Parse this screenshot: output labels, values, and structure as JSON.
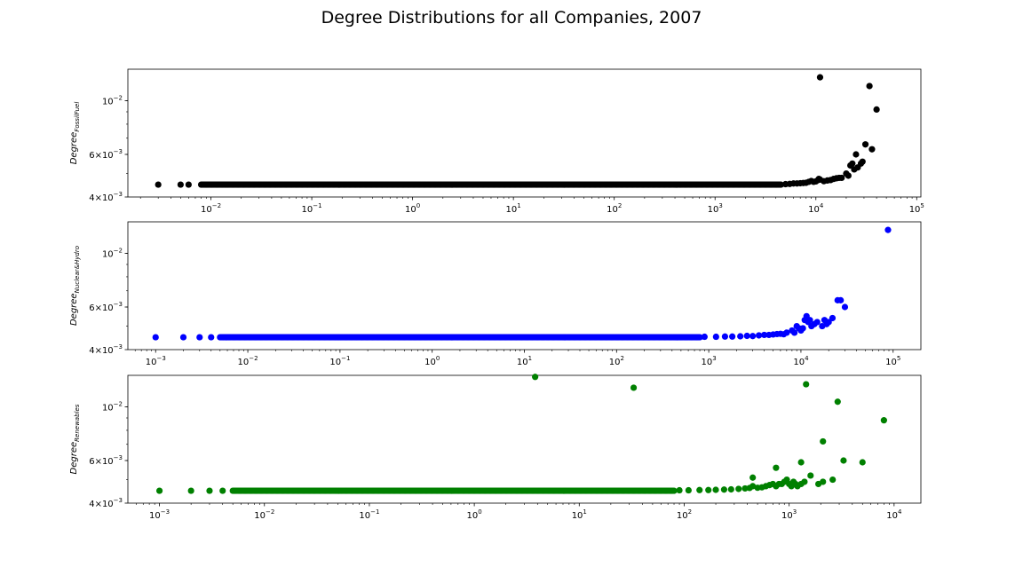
{
  "figure": {
    "title": "Degree Distributions for all Companies, 2007"
  },
  "chart_data": [
    {
      "type": "scatter",
      "name": "fossil",
      "ylabel_main": "Degree",
      "ylabel_sub": "FossilFuel",
      "color": "#000000",
      "xscale": "log",
      "yscale": "log",
      "xlim": [
        0.0015,
        110000
      ],
      "ylim": [
        0.004,
        0.0135
      ],
      "xticks": [
        {
          "base": "10",
          "exp": "−2",
          "v": 0.01
        },
        {
          "base": "10",
          "exp": "−1",
          "v": 0.1
        },
        {
          "base": "10",
          "exp": "0",
          "v": 1
        },
        {
          "base": "10",
          "exp": "1",
          "v": 10
        },
        {
          "base": "10",
          "exp": "2",
          "v": 100
        },
        {
          "base": "10",
          "exp": "3",
          "v": 1000
        },
        {
          "base": "10",
          "exp": "4",
          "v": 10000
        },
        {
          "base": "10",
          "exp": "5",
          "v": 100000
        }
      ],
      "yticks": [
        {
          "mant": "4",
          "base": "10",
          "exp": "−3",
          "v": 0.004
        },
        {
          "mant": "6",
          "base": "10",
          "exp": "−3",
          "v": 0.006
        },
        {
          "mant": "",
          "base": "10",
          "exp": "−2",
          "v": 0.01
        }
      ],
      "baseline_y": 0.0045,
      "baseline_x": [
        0.008,
        4500
      ],
      "sparse_x": [
        0.003,
        0.005,
        0.006
      ],
      "x": [
        5000,
        5500,
        6000,
        6500,
        7000,
        7500,
        8000,
        8500,
        9000,
        9500,
        10000,
        10500,
        11000,
        12000,
        13000,
        14000,
        15000,
        16000,
        17000,
        18000,
        20000,
        21000,
        22000,
        23000,
        24000,
        25000,
        26000,
        28000,
        29000,
        31000,
        36000,
        11000,
        34000,
        40000,
        10700
      ],
      "y": [
        0.00452,
        0.00453,
        0.00455,
        0.00455,
        0.00456,
        0.00457,
        0.00458,
        0.00462,
        0.00466,
        0.00462,
        0.00464,
        0.0047,
        0.00472,
        0.00465,
        0.00468,
        0.0047,
        0.00475,
        0.00478,
        0.0048,
        0.0048,
        0.005,
        0.0049,
        0.0054,
        0.0055,
        0.0052,
        0.006,
        0.0053,
        0.0055,
        0.0056,
        0.0066,
        0.0063,
        0.0125,
        0.0115,
        0.0092,
        0.00475
      ]
    },
    {
      "type": "scatter",
      "name": "nuclear",
      "ylabel_main": "Degree",
      "ylabel_sub": "Nuclear&Hydro",
      "color": "#0000ff",
      "xscale": "log",
      "yscale": "log",
      "xlim": [
        0.0005,
        200000
      ],
      "ylim": [
        0.004,
        0.0135
      ],
      "xticks": [
        {
          "base": "10",
          "exp": "−3",
          "v": 0.001
        },
        {
          "base": "10",
          "exp": "−2",
          "v": 0.01
        },
        {
          "base": "10",
          "exp": "−1",
          "v": 0.1
        },
        {
          "base": "10",
          "exp": "0",
          "v": 1
        },
        {
          "base": "10",
          "exp": "1",
          "v": 10
        },
        {
          "base": "10",
          "exp": "2",
          "v": 100
        },
        {
          "base": "10",
          "exp": "3",
          "v": 1000
        },
        {
          "base": "10",
          "exp": "4",
          "v": 10000
        },
        {
          "base": "10",
          "exp": "5",
          "v": 100000
        }
      ],
      "yticks": [
        {
          "mant": "4",
          "base": "10",
          "exp": "−3",
          "v": 0.004
        },
        {
          "mant": "6",
          "base": "10",
          "exp": "−3",
          "v": 0.006
        },
        {
          "mant": "",
          "base": "10",
          "exp": "−2",
          "v": 0.01
        }
      ],
      "baseline_y": 0.0045,
      "baseline_x": [
        0.005,
        800
      ],
      "sparse_x": [
        0.001,
        0.002,
        0.003,
        0.004
      ],
      "x": [
        900,
        1200,
        1500,
        1800,
        2200,
        2600,
        3000,
        3500,
        4000,
        4500,
        5000,
        5500,
        6000,
        6500,
        7000,
        8000,
        8500,
        9000,
        9500,
        10000,
        10500,
        11000,
        11500,
        12000,
        12500,
        13000,
        14000,
        15000,
        17000,
        18000,
        19000,
        20000,
        22000,
        25000,
        27000,
        30000,
        88000
      ],
      "y": [
        0.00452,
        0.00452,
        0.00453,
        0.00453,
        0.00454,
        0.00456,
        0.00455,
        0.00458,
        0.0046,
        0.0046,
        0.00462,
        0.00464,
        0.00465,
        0.00463,
        0.0047,
        0.0048,
        0.0047,
        0.005,
        0.0049,
        0.0048,
        0.0049,
        0.0053,
        0.0055,
        0.0052,
        0.0053,
        0.005,
        0.0051,
        0.0052,
        0.005,
        0.0053,
        0.0051,
        0.0052,
        0.0054,
        0.0064,
        0.0064,
        0.006,
        0.0125
      ]
    },
    {
      "type": "scatter",
      "name": "renewables",
      "ylabel_main": "Degree",
      "ylabel_sub": "Renewables",
      "color": "#008000",
      "xscale": "log",
      "yscale": "log",
      "xlim": [
        0.0005,
        18000
      ],
      "ylim": [
        0.004,
        0.0135
      ],
      "xticks": [
        {
          "base": "10",
          "exp": "−3",
          "v": 0.001
        },
        {
          "base": "10",
          "exp": "−2",
          "v": 0.01
        },
        {
          "base": "10",
          "exp": "−1",
          "v": 0.1
        },
        {
          "base": "10",
          "exp": "0",
          "v": 1
        },
        {
          "base": "10",
          "exp": "1",
          "v": 10
        },
        {
          "base": "10",
          "exp": "2",
          "v": 100
        },
        {
          "base": "10",
          "exp": "3",
          "v": 1000
        },
        {
          "base": "10",
          "exp": "4",
          "v": 10000
        }
      ],
      "yticks": [
        {
          "mant": "4",
          "base": "10",
          "exp": "−3",
          "v": 0.004
        },
        {
          "mant": "6",
          "base": "10",
          "exp": "−3",
          "v": 0.006
        },
        {
          "mant": "",
          "base": "10",
          "exp": "−2",
          "v": 0.01
        }
      ],
      "baseline_y": 0.0045,
      "baseline_x": [
        0.005,
        80
      ],
      "sparse_x": [
        0.001,
        0.002,
        0.003,
        0.004
      ],
      "x": [
        90,
        110,
        140,
        170,
        200,
        240,
        280,
        330,
        380,
        420,
        450,
        500,
        550,
        600,
        650,
        700,
        750,
        800,
        850,
        900,
        950,
        1000,
        1050,
        1100,
        1150,
        1200,
        1300,
        1400,
        1600,
        1900,
        2100,
        2600,
        3.8,
        33,
        1450,
        2900,
        2100,
        3300,
        5000,
        8000,
        450,
        750,
        1300
      ],
      "y": [
        0.00452,
        0.00452,
        0.00453,
        0.00453,
        0.00454,
        0.00455,
        0.00456,
        0.00458,
        0.0046,
        0.00462,
        0.0047,
        0.00463,
        0.00465,
        0.0047,
        0.00475,
        0.0048,
        0.0047,
        0.0048,
        0.0048,
        0.0049,
        0.005,
        0.0048,
        0.0047,
        0.0049,
        0.0048,
        0.0047,
        0.0048,
        0.0049,
        0.0052,
        0.0048,
        0.0049,
        0.005,
        0.0133,
        0.012,
        0.0124,
        0.0105,
        0.0072,
        0.006,
        0.0059,
        0.0088,
        0.0051,
        0.0056,
        0.0059
      ]
    }
  ]
}
